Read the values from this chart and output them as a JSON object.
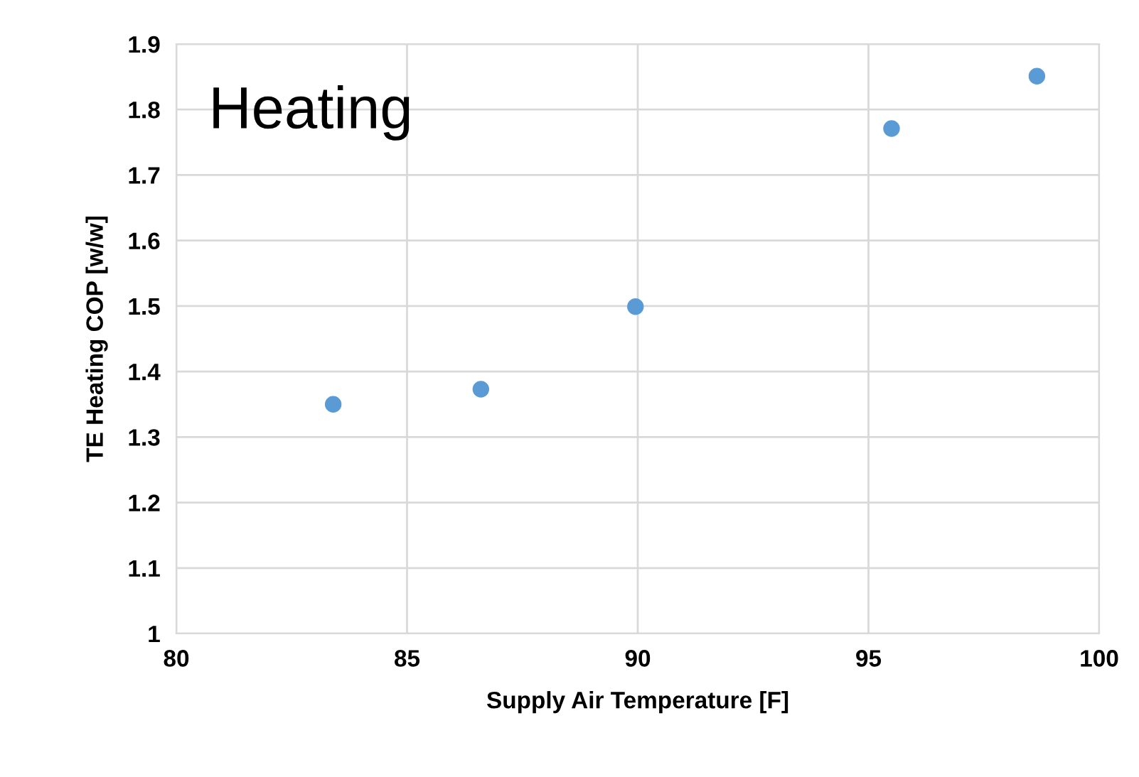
{
  "chart_data": {
    "type": "scatter",
    "xlabel": "Supply Air Temperature [F]",
    "ylabel": "TE Heating COP [w/w]",
    "annotations": [
      "Heating"
    ],
    "x": [
      83.4,
      86.6,
      89.95,
      95.5,
      98.65
    ],
    "series": [
      {
        "color": "#5b9bd5",
        "values": [
          1.35,
          1.373,
          1.499,
          1.771,
          1.851
        ]
      }
    ],
    "xlim": [
      80,
      100
    ],
    "xticks": [
      80,
      85,
      90,
      95,
      100
    ],
    "ylim": [
      1,
      1.9
    ],
    "yticks": [
      1,
      1.1,
      1.2,
      1.3,
      1.4,
      1.5,
      1.6,
      1.7,
      1.8,
      1.9
    ],
    "grid": true,
    "marker": "circle"
  }
}
